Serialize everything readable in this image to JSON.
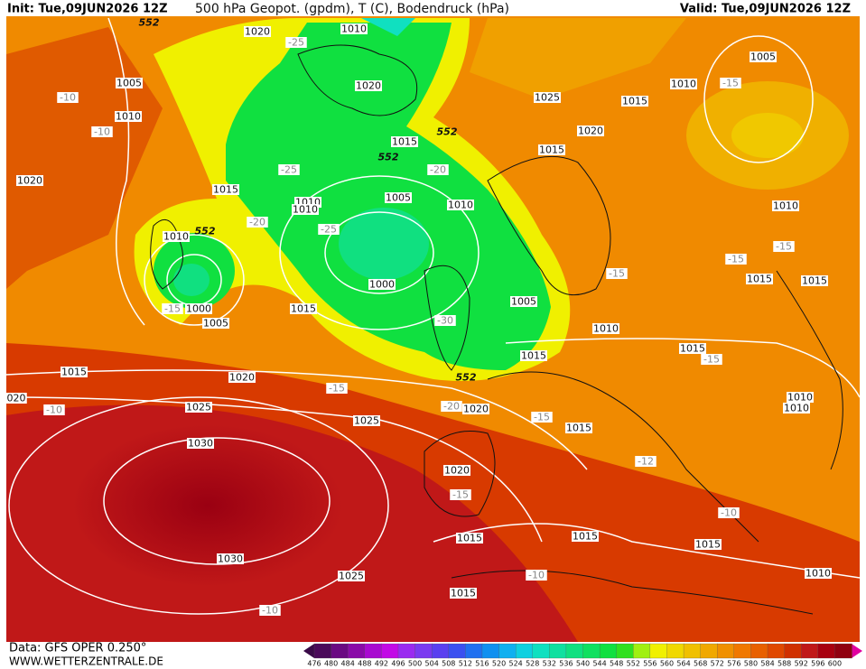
{
  "header": {
    "init": "Init: Tue,09JUN2026 12Z",
    "title": "500 hPa Geopot. (gpdm), T (C), Bodendruck (hPa)",
    "valid": "Valid: Tue,09JUN2026 12Z"
  },
  "footer": {
    "data": "Data: GFS OPER 0.250°",
    "website": "WWW.WETTERZENTRALE.DE"
  },
  "colorbar": {
    "labels": [
      476,
      480,
      484,
      488,
      492,
      496,
      500,
      504,
      508,
      512,
      516,
      520,
      524,
      528,
      532,
      536,
      540,
      544,
      548,
      552,
      556,
      560,
      564,
      568,
      572,
      576,
      580,
      584,
      588,
      592,
      596,
      600
    ],
    "colors": [
      "#4b0a5a",
      "#6a0a82",
      "#8a0aa8",
      "#a80ad0",
      "#c20ae6",
      "#9a2af0",
      "#7a3af0",
      "#5a40f0",
      "#3a50f0",
      "#2070f0",
      "#1090f0",
      "#10b0f0",
      "#10d0e0",
      "#10e0c0",
      "#10e0a0",
      "#10e080",
      "#10e060",
      "#10e040",
      "#30e020",
      "#a0f010",
      "#f0f000",
      "#f0d800",
      "#f0c000",
      "#f0a800",
      "#f09000",
      "#f07800",
      "#e86000",
      "#e04800",
      "#d03000",
      "#c01818",
      "#a80010",
      "#900010"
    ]
  },
  "map_labels": [
    "552",
    "1020",
    "-25",
    "1010",
    "1005",
    "-10",
    "1010",
    "-10",
    "1020",
    "1025",
    "1015",
    "1010",
    "-15",
    "1005",
    "1020",
    "1015",
    "552",
    "552",
    "-20",
    "1015",
    "1020",
    "-25",
    "1015",
    "1010",
    "1010",
    "-20",
    "1005",
    "1010",
    "1010",
    "1010",
    "552",
    "-25",
    "-15",
    "-15",
    "-15",
    "1015",
    "1015",
    "1000",
    "1005",
    "-15",
    "1000",
    "1015",
    "1005",
    "-30",
    "1010",
    "1015",
    "-15",
    "1015",
    "552",
    "1015",
    "1020",
    "-15",
    "020",
    "-10",
    "1025",
    "-20",
    "1020",
    "-15",
    "1010",
    "1010",
    "1025",
    "1015",
    "1030",
    "-12",
    "1020",
    "-15",
    "-10",
    "1015",
    "1015",
    "1015",
    "1030",
    "-10",
    "1025",
    "1010",
    "1015",
    "-10"
  ]
}
